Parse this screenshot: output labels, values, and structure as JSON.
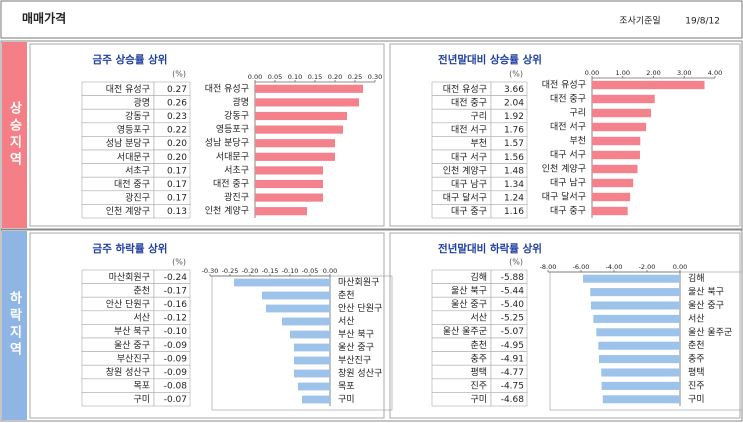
{
  "header": {
    "title": "매매가격",
    "date_label": "조사기준일",
    "date": "19/8/12"
  },
  "sections": [
    "상승지역",
    "하락지역"
  ],
  "chart_data": [
    {
      "type": "bar",
      "title": "금주 상승률 상위",
      "unit": "(%)",
      "color": "#f4828c",
      "categories": [
        "대전 유성구",
        "광명",
        "강동구",
        "영등포구",
        "성남 분당구",
        "서대문구",
        "서초구",
        "대전 중구",
        "광진구",
        "인천 계양구"
      ],
      "values": [
        0.27,
        0.26,
        0.23,
        0.22,
        0.2,
        0.2,
        0.17,
        0.17,
        0.17,
        0.13
      ],
      "value_labels": [
        "0.27",
        "0.26",
        "0.23",
        "0.22",
        "0.20",
        "0.20",
        "0.17",
        "0.17",
        "0.17",
        "0.13"
      ],
      "xlim": [
        0,
        0.3
      ],
      "xticks": [
        {
          "value": 0,
          "label": "0.00"
        },
        {
          "value": 0.05,
          "label": "0.05"
        },
        {
          "value": 0.1,
          "label": "0.10"
        },
        {
          "value": 0.15,
          "label": "0.15"
        },
        {
          "value": 0.2,
          "label": "0.20"
        },
        {
          "value": 0.25,
          "label": "0.25"
        },
        {
          "value": 0.3,
          "label": "0.30"
        }
      ]
    },
    {
      "type": "bar",
      "title": "전년말대비 상승률 상위",
      "unit": "(%)",
      "color": "#f4828c",
      "categories": [
        "대전 유성구",
        "대전 중구",
        "구리",
        "대전 서구",
        "부천",
        "대구 서구",
        "인천 계양구",
        "대구 남구",
        "대구 달서구",
        "대구 중구"
      ],
      "values": [
        3.66,
        2.04,
        1.92,
        1.76,
        1.57,
        1.56,
        1.48,
        1.34,
        1.24,
        1.16
      ],
      "value_labels": [
        "3.66",
        "2.04",
        "1.92",
        "1.76",
        "1.57",
        "1.56",
        "1.48",
        "1.34",
        "1.24",
        "1.16"
      ],
      "xlim": [
        0,
        4
      ],
      "xticks": [
        {
          "value": 0,
          "label": "0.00"
        },
        {
          "value": 1,
          "label": "1.00"
        },
        {
          "value": 2,
          "label": "2.00"
        },
        {
          "value": 3,
          "label": "3.00"
        },
        {
          "value": 4,
          "label": "4.00"
        }
      ]
    },
    {
      "type": "bar",
      "title": "금주 하락률 상위",
      "unit": "(%)",
      "color": "#9dc3ea",
      "categories": [
        "마산회원구",
        "춘천",
        "안산 단원구",
        "서산",
        "부산 북구",
        "울산 중구",
        "부산진구",
        "창원 성산구",
        "목포",
        "구미"
      ],
      "values": [
        -0.24,
        -0.17,
        -0.16,
        -0.12,
        -0.1,
        -0.09,
        -0.09,
        -0.09,
        -0.08,
        -0.07
      ],
      "value_labels": [
        "-0.24",
        "-0.17",
        "-0.16",
        "-0.12",
        "-0.10",
        "-0.09",
        "-0.09",
        "-0.09",
        "-0.08",
        "-0.07"
      ],
      "xlim": [
        -0.3,
        0
      ],
      "xticks": [
        {
          "value": -0.3,
          "label": "-0.30"
        },
        {
          "value": -0.25,
          "label": "-0.25"
        },
        {
          "value": -0.2,
          "label": "-0.20"
        },
        {
          "value": -0.15,
          "label": "-0.15"
        },
        {
          "value": -0.1,
          "label": "-0.10"
        },
        {
          "value": -0.05,
          "label": "-0.05"
        },
        {
          "value": 0,
          "label": "0.00"
        }
      ]
    },
    {
      "type": "bar",
      "title": "전년말대비 하락률 상위",
      "unit": "(%)",
      "color": "#9dc3ea",
      "categories": [
        "김해",
        "울산 북구",
        "울산 중구",
        "서산",
        "울산 울주군",
        "춘천",
        "충주",
        "평택",
        "진주",
        "구미"
      ],
      "values": [
        -5.88,
        -5.44,
        -5.4,
        -5.25,
        -5.07,
        -4.95,
        -4.91,
        -4.77,
        -4.75,
        -4.68
      ],
      "value_labels": [
        "-5.88",
        "-5.44",
        "-5.40",
        "-5.25",
        "-5.07",
        "-4.95",
        "-4.91",
        "-4.77",
        "-4.75",
        "-4.68"
      ],
      "xlim": [
        -8,
        0
      ],
      "xticks": [
        {
          "value": -8,
          "label": "-8.00"
        },
        {
          "value": -6,
          "label": "-6.00"
        },
        {
          "value": -4,
          "label": "-4.00"
        },
        {
          "value": -2,
          "label": "-2.00"
        },
        {
          "value": 0,
          "label": "0.00"
        }
      ]
    }
  ]
}
